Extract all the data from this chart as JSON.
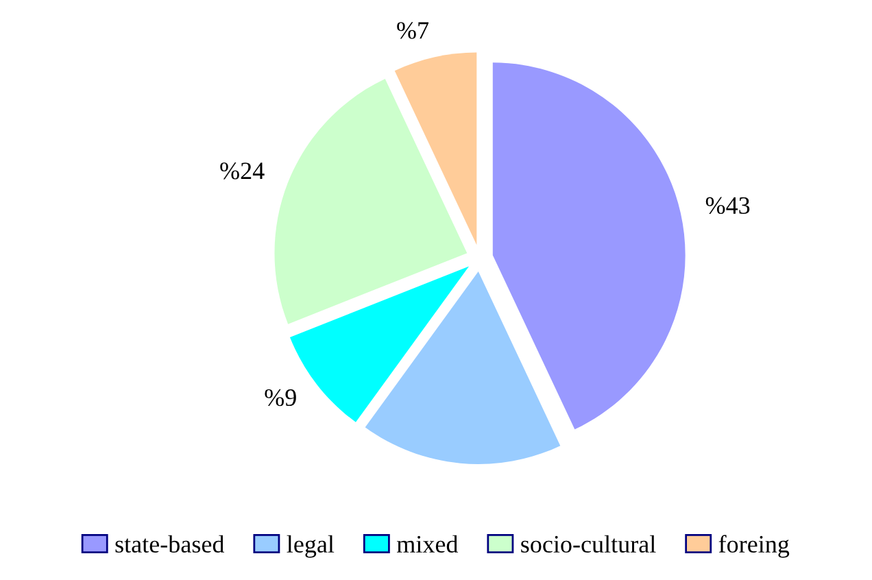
{
  "chart_data": {
    "type": "pie",
    "categories": [
      "state-based",
      "legal",
      "mixed",
      "socio-cultural",
      "foreing"
    ],
    "values": [
      43,
      17,
      9,
      24,
      7
    ],
    "value_labels": [
      "%43",
      null,
      "%9",
      "%24",
      "%7"
    ],
    "colors": [
      "#9999ff",
      "#99ccff",
      "#00ffff",
      "#ccffcc",
      "#ffcc99"
    ],
    "legend": "bottom"
  }
}
